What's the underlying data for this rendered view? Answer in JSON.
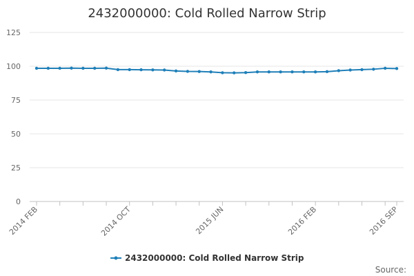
{
  "chart_data": {
    "type": "line",
    "title": "2432000000: Cold Rolled Narrow Strip",
    "xlabel": "",
    "ylabel": "",
    "ylim": [
      0,
      125
    ],
    "yticks": [
      "0",
      "25",
      "50",
      "75",
      "100",
      "125"
    ],
    "grid": true,
    "legend_position": "bottom",
    "x": [
      "2014 FEB",
      "2014 MAR",
      "2014 APR",
      "2014 MAY",
      "2014 JUN",
      "2014 JUL",
      "2014 AUG",
      "2014 SEP",
      "2014 OCT",
      "2014 NOV",
      "2014 DEC",
      "2015 JAN",
      "2015 FEB",
      "2015 MAR",
      "2015 APR",
      "2015 MAY",
      "2015 JUN",
      "2015 JUL",
      "2015 AUG",
      "2015 SEP",
      "2015 OCT",
      "2015 NOV",
      "2015 DEC",
      "2016 JAN",
      "2016 FEB",
      "2016 MAR",
      "2016 APR",
      "2016 MAY",
      "2016 JUN",
      "2016 JUL",
      "2016 AUG",
      "2016 SEP"
    ],
    "x_tick_labels": [
      "2014 FEB",
      "2014 OCT",
      "2015 JUN",
      "2016 FEB",
      "2016 SEP"
    ],
    "series": [
      {
        "name": "2432000000: Cold Rolled Narrow Strip",
        "color": "#1f7fb8",
        "values": [
          98.5,
          98.5,
          98.5,
          98.6,
          98.5,
          98.5,
          98.6,
          97.5,
          97.5,
          97.4,
          97.3,
          97.2,
          96.5,
          96.2,
          96.1,
          95.8,
          95.2,
          95.1,
          95.3,
          95.8,
          95.8,
          95.8,
          95.8,
          95.8,
          95.8,
          96.0,
          96.7,
          97.2,
          97.5,
          97.8,
          98.5,
          98.3
        ]
      }
    ]
  },
  "source_label": "Source:"
}
